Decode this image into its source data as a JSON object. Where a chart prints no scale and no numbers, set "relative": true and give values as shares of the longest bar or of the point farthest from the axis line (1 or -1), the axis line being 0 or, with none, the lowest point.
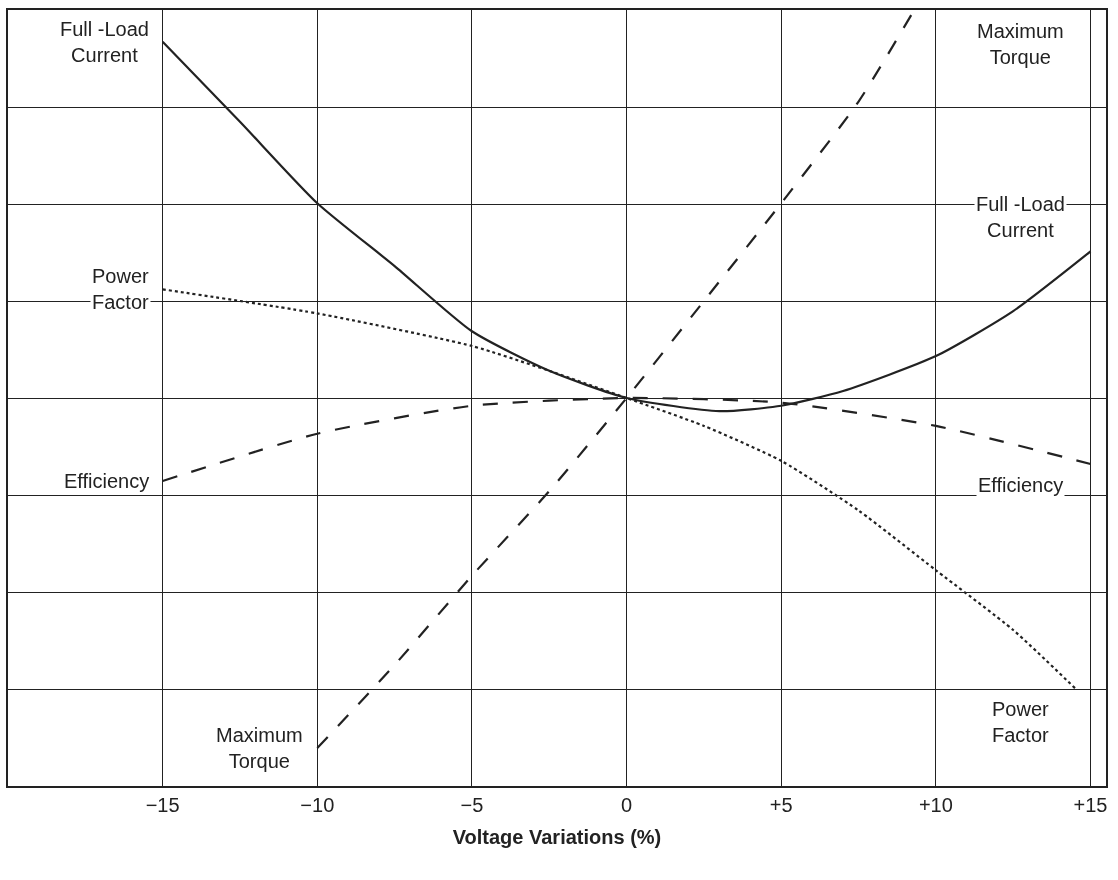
{
  "chart_data": {
    "type": "line",
    "relative": true,
    "xlabel": "Voltage Variations (%)",
    "xlim": [
      -20,
      15.5
    ],
    "xticks": [
      {
        "value": -15,
        "label": "−15"
      },
      {
        "value": -10,
        "label": "−10"
      },
      {
        "value": -5,
        "label": "−5"
      },
      0,
      {
        "value": 5,
        "label": "+5"
      },
      {
        "value": 10,
        "label": "+10"
      },
      {
        "value": 15,
        "label": "+15"
      }
    ],
    "grid": true,
    "tick_labels": "x",
    "marker": "none",
    "series": [
      {
        "name": "Full -Load\nCurrent",
        "color": "#222222",
        "line_style": "solid",
        "x": [
          -15,
          -12.5,
          -10,
          -7.5,
          -5,
          -2.5,
          0,
          3,
          5,
          7,
          10,
          12.5,
          15
        ],
        "values": [
          0.959,
          0.856,
          0.751,
          0.67,
          0.586,
          0.535,
          0.5,
          0.483,
          0.49,
          0.509,
          0.554,
          0.612,
          0.689
        ]
      },
      {
        "name": "Maximum\nTorque",
        "color": "#222222",
        "line_style": "dashed",
        "x": [
          -10,
          -7.5,
          -5,
          -2.5,
          0,
          2.5,
          5,
          7.5,
          9.3
        ],
        "values": [
          0.049,
          0.156,
          0.271,
          0.38,
          0.5,
          0.625,
          0.751,
          0.882,
          1.0
        ]
      },
      {
        "name": "Power\nFactor",
        "color": "#222222",
        "line_style": "dotted",
        "x": [
          -15,
          -10,
          -5,
          -2.5,
          0,
          2.5,
          5,
          7.5,
          10,
          12.5,
          14.5
        ],
        "values": [
          0.64,
          0.609,
          0.567,
          0.535,
          0.5,
          0.464,
          0.419,
          0.355,
          0.278,
          0.201,
          0.126
        ]
      },
      {
        "name": "Efficiency",
        "color": "#222222",
        "line_style": "dashed",
        "x": [
          -15,
          -10,
          -5,
          0,
          5,
          10,
          15
        ],
        "values": [
          0.393,
          0.454,
          0.49,
          0.5,
          0.494,
          0.464,
          0.415
        ]
      }
    ]
  }
}
